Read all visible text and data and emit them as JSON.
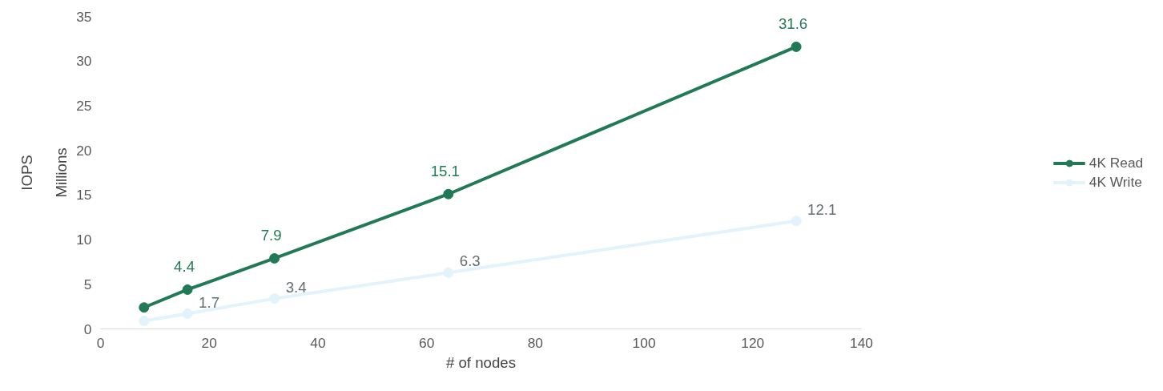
{
  "chart_data": {
    "type": "line",
    "xlabel": "# of nodes",
    "ylabel": "IOPS",
    "annotations": [
      "Millions"
    ],
    "x": [
      8,
      16,
      32,
      64,
      128
    ],
    "series": [
      {
        "name": "4K Read",
        "color": "#217a55",
        "values": [
          2.4,
          4.4,
          7.9,
          15.1,
          31.6
        ],
        "value_labels": [
          null,
          "4.4",
          "7.9",
          "15.1",
          "31.6"
        ]
      },
      {
        "name": "4K Write",
        "color": "#e2f3fb",
        "values": [
          0.9,
          1.7,
          3.4,
          6.3,
          12.1
        ],
        "value_labels": [
          null,
          "1.7",
          "3.4",
          "6.3",
          "12.1"
        ]
      }
    ],
    "xlim": [
      0,
      140
    ],
    "xticks": [
      0,
      20,
      40,
      60,
      80,
      100,
      120,
      140
    ],
    "ylim": [
      0,
      35
    ],
    "yticks": [
      0,
      5,
      10,
      15,
      20,
      25,
      30,
      35
    ],
    "grid": false,
    "legend": "right",
    "marker": "circle",
    "line_style": "solid"
  }
}
